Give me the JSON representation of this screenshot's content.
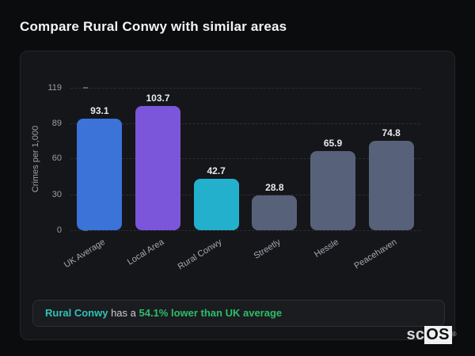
{
  "page": {
    "title": "Compare Rural Conwy with similar areas"
  },
  "chart_data": {
    "type": "bar",
    "title": "",
    "xlabel": "",
    "ylabel": "Crimes per 1,000",
    "categories": [
      "UK Average",
      "Local Area",
      "Rural Conwy",
      "Streetly",
      "Hessle",
      "Peacehaven"
    ],
    "values": [
      93.1,
      103.7,
      42.7,
      28.8,
      65.9,
      74.8
    ],
    "bar_colors": [
      "#3b73d9",
      "#7b55da",
      "#23b0cd",
      "#57627a",
      "#57627a",
      "#57627a"
    ],
    "y_ticks": [
      0,
      30,
      60,
      89,
      119
    ],
    "ylim": [
      0,
      119
    ],
    "grid": "dashed-horizontal",
    "legend": "none"
  },
  "annotation": {
    "highlight": "Rural Conwy",
    "middle": " has a ",
    "stat": "54.1% lower than UK average",
    "highlight_color": "#2ec4b6",
    "stat_color": "#2dbd68"
  },
  "logo": {
    "prefix": "sc",
    "suffix": "OS",
    "registered": "®"
  }
}
